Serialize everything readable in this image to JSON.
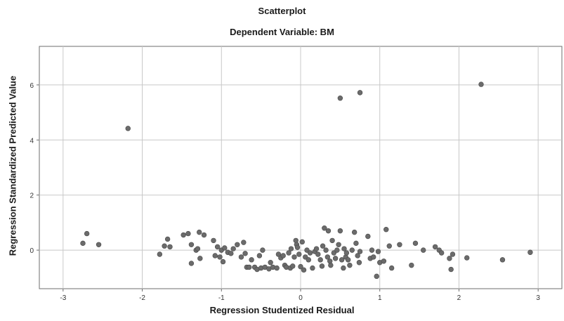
{
  "chart_data": {
    "type": "scatter",
    "title": "Scatterplot",
    "subtitle": "Dependent Variable: BM",
    "xlabel": "Regression Studentized Residual",
    "ylabel": "Regression Standardized Predicted Value",
    "xlim": [
      -3.3,
      3.3
    ],
    "ylim": [
      -1.4,
      7.4
    ],
    "xticks": [
      "-3",
      "-2",
      "-1",
      "0",
      "1",
      "2",
      "3"
    ],
    "yticks": [
      "0",
      "2",
      "4",
      "6"
    ],
    "grid": true,
    "point_color": "#6b6b6b",
    "series": [
      {
        "points": [
          [
            -2.75,
            0.25
          ],
          [
            -2.7,
            0.6
          ],
          [
            -2.55,
            0.2
          ],
          [
            -2.18,
            4.42
          ],
          [
            -1.78,
            -0.15
          ],
          [
            -1.72,
            0.15
          ],
          [
            -1.68,
            0.4
          ],
          [
            -1.65,
            0.12
          ],
          [
            -1.48,
            0.55
          ],
          [
            -1.42,
            0.6
          ],
          [
            -1.38,
            0.2
          ],
          [
            -1.38,
            -0.48
          ],
          [
            -1.32,
            0.0
          ],
          [
            -1.3,
            0.05
          ],
          [
            -1.28,
            0.65
          ],
          [
            -1.27,
            -0.3
          ],
          [
            -1.22,
            0.55
          ],
          [
            -1.1,
            0.35
          ],
          [
            -1.08,
            -0.2
          ],
          [
            -1.05,
            0.12
          ],
          [
            -1.02,
            -0.25
          ],
          [
            -1.0,
            0.0
          ],
          [
            -0.98,
            -0.42
          ],
          [
            -0.96,
            0.08
          ],
          [
            -0.92,
            -0.08
          ],
          [
            -0.88,
            -0.12
          ],
          [
            -0.85,
            0.05
          ],
          [
            -0.8,
            0.2
          ],
          [
            -0.75,
            -0.25
          ],
          [
            -0.72,
            0.28
          ],
          [
            -0.7,
            -0.12
          ],
          [
            -0.68,
            -0.62
          ],
          [
            -0.65,
            -0.62
          ],
          [
            -0.62,
            -0.35
          ],
          [
            -0.58,
            -0.62
          ],
          [
            -0.55,
            -0.7
          ],
          [
            -0.52,
            -0.2
          ],
          [
            -0.5,
            -0.65
          ],
          [
            -0.48,
            0.0
          ],
          [
            -0.45,
            -0.62
          ],
          [
            -0.4,
            -0.68
          ],
          [
            -0.38,
            -0.45
          ],
          [
            -0.35,
            -0.62
          ],
          [
            -0.3,
            -0.65
          ],
          [
            -0.28,
            -0.15
          ],
          [
            -0.25,
            -0.28
          ],
          [
            -0.22,
            -0.2
          ],
          [
            -0.2,
            -0.55
          ],
          [
            -0.18,
            -0.62
          ],
          [
            -0.15,
            -0.1
          ],
          [
            -0.13,
            -0.65
          ],
          [
            -0.12,
            0.05
          ],
          [
            -0.1,
            -0.58
          ],
          [
            -0.08,
            -0.25
          ],
          [
            -0.06,
            0.35
          ],
          [
            -0.05,
            0.2
          ],
          [
            -0.04,
            0.1
          ],
          [
            -0.02,
            -0.15
          ],
          [
            0.0,
            -0.6
          ],
          [
            0.02,
            0.3
          ],
          [
            0.04,
            -0.72
          ],
          [
            0.06,
            -0.25
          ],
          [
            0.08,
            0.0
          ],
          [
            0.1,
            -0.35
          ],
          [
            0.12,
            -0.1
          ],
          [
            0.15,
            -0.65
          ],
          [
            0.18,
            -0.05
          ],
          [
            0.2,
            0.05
          ],
          [
            0.22,
            -0.15
          ],
          [
            0.25,
            -0.35
          ],
          [
            0.27,
            -0.58
          ],
          [
            0.28,
            0.15
          ],
          [
            0.3,
            0.8
          ],
          [
            0.32,
            0.0
          ],
          [
            0.34,
            -0.25
          ],
          [
            0.35,
            0.7
          ],
          [
            0.37,
            -0.4
          ],
          [
            0.38,
            -0.55
          ],
          [
            0.4,
            0.35
          ],
          [
            0.42,
            -0.1
          ],
          [
            0.44,
            -0.3
          ],
          [
            0.46,
            0.0
          ],
          [
            0.48,
            0.2
          ],
          [
            0.5,
            0.7
          ],
          [
            0.52,
            -0.35
          ],
          [
            0.54,
            -0.65
          ],
          [
            0.55,
            0.05
          ],
          [
            0.57,
            -0.25
          ],
          [
            0.58,
            -0.1
          ],
          [
            0.6,
            -0.35
          ],
          [
            0.62,
            -0.55
          ],
          [
            0.65,
            0.0
          ],
          [
            0.68,
            0.65
          ],
          [
            0.7,
            0.25
          ],
          [
            0.72,
            -0.2
          ],
          [
            0.74,
            -0.45
          ],
          [
            0.75,
            -0.05
          ],
          [
            0.5,
            5.52
          ],
          [
            0.75,
            5.72
          ],
          [
            0.85,
            0.5
          ],
          [
            0.88,
            -0.3
          ],
          [
            0.9,
            0.0
          ],
          [
            0.92,
            -0.25
          ],
          [
            0.96,
            -0.95
          ],
          [
            0.98,
            -0.05
          ],
          [
            1.0,
            -0.45
          ],
          [
            1.05,
            -0.4
          ],
          [
            1.08,
            0.75
          ],
          [
            1.12,
            0.15
          ],
          [
            1.15,
            -0.65
          ],
          [
            1.25,
            0.2
          ],
          [
            1.4,
            -0.55
          ],
          [
            1.45,
            0.25
          ],
          [
            1.55,
            0.0
          ],
          [
            1.7,
            0.12
          ],
          [
            1.75,
            0.0
          ],
          [
            1.78,
            -0.1
          ],
          [
            1.88,
            -0.3
          ],
          [
            1.9,
            -0.7
          ],
          [
            1.92,
            -0.15
          ],
          [
            2.1,
            -0.28
          ],
          [
            2.28,
            6.02
          ],
          [
            2.55,
            -0.35
          ],
          [
            2.9,
            -0.08
          ]
        ]
      }
    ]
  }
}
